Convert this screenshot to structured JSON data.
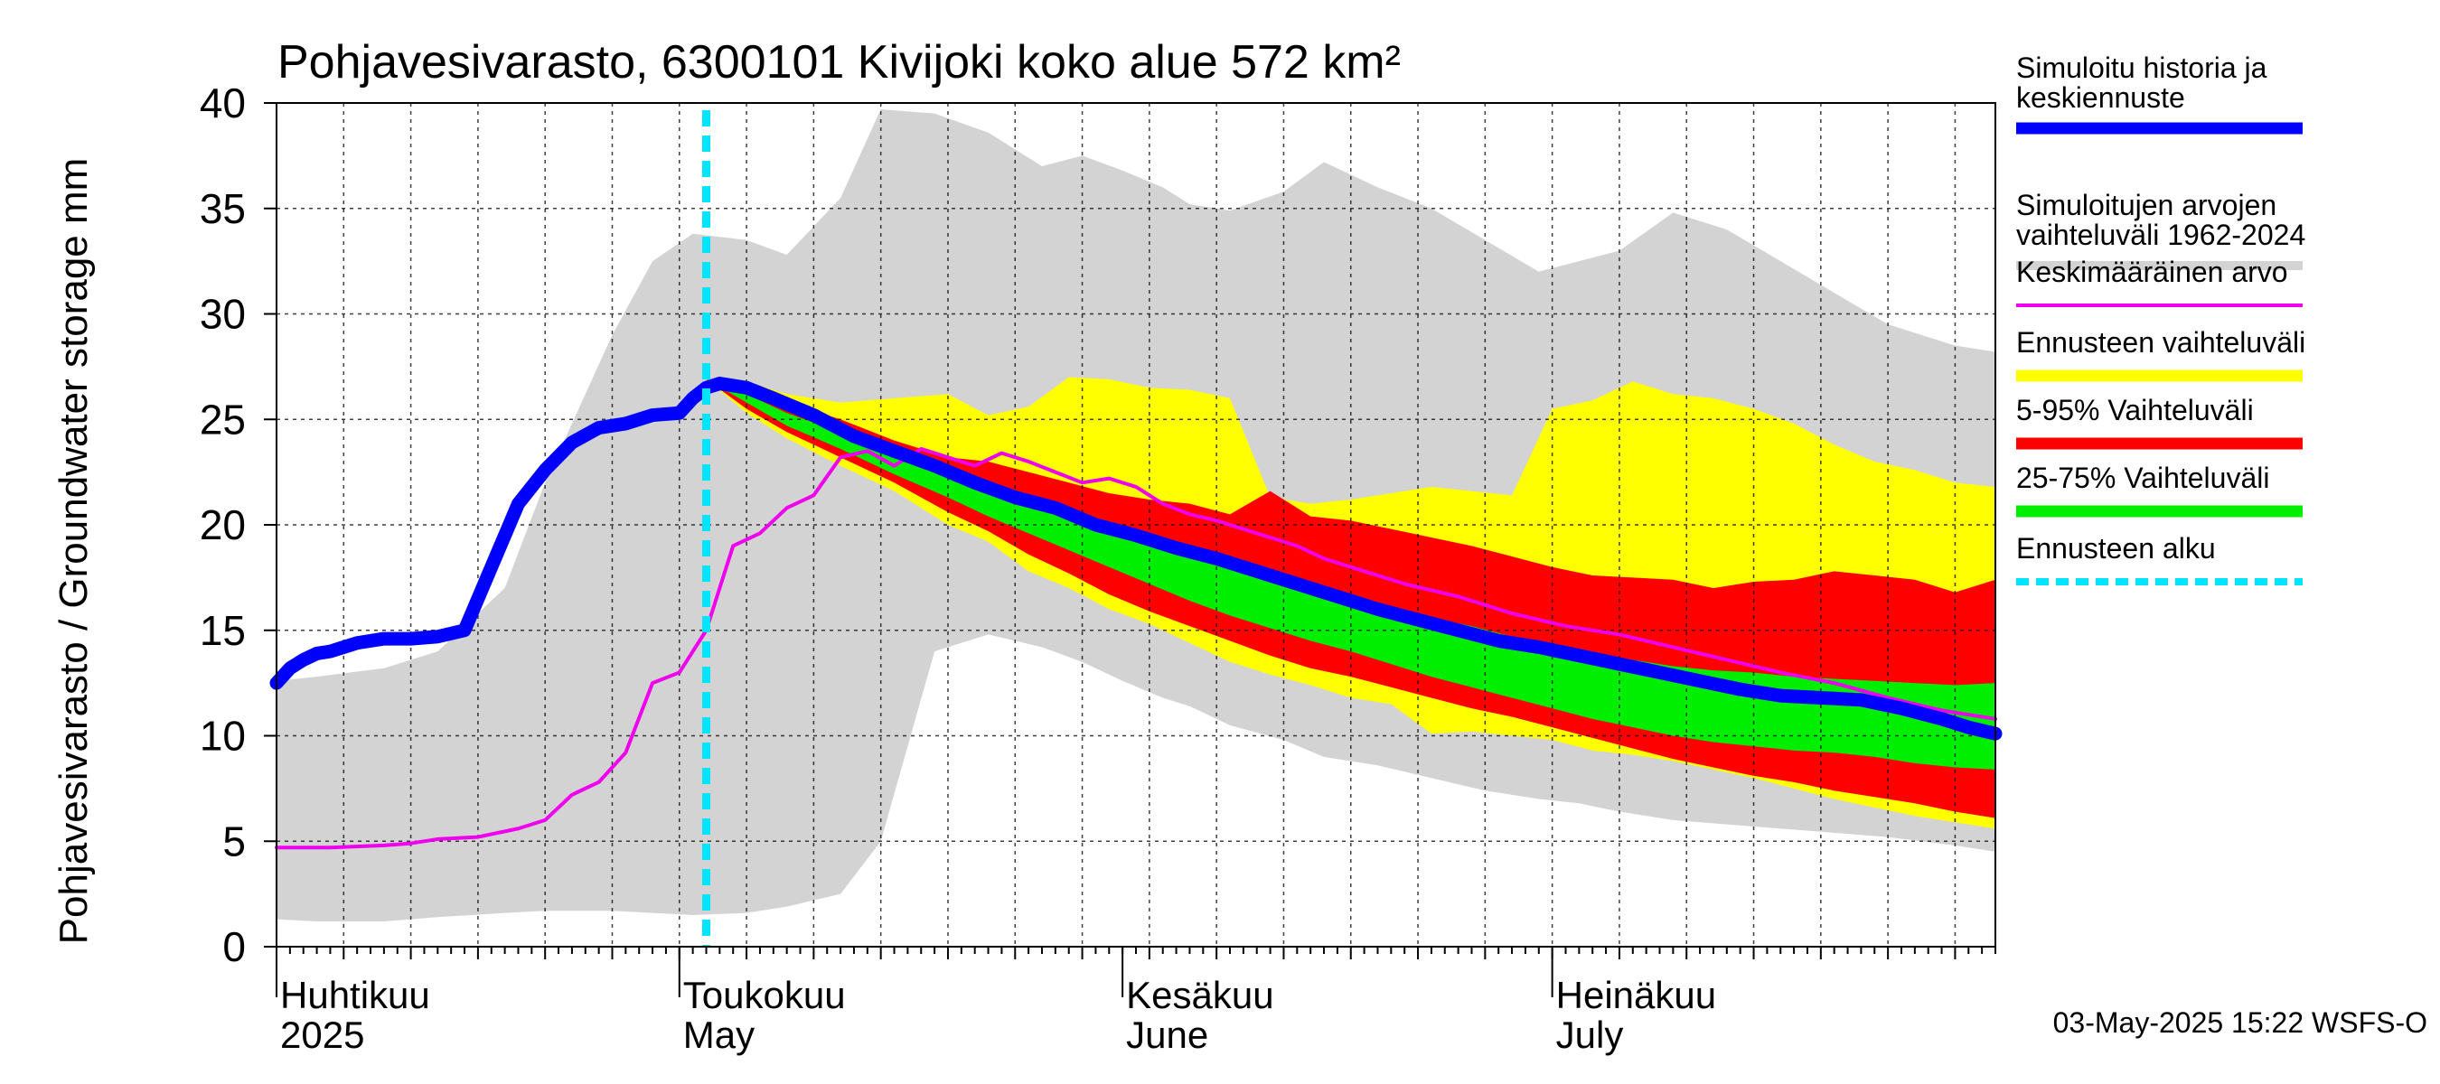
{
  "chart_data": {
    "type": "area",
    "title": "Pohjavesivarasto, 6300101 Kivijoki koko alue 572 km²",
    "ylabel": "Pohjavesivarasto / Groundwater storage   mm",
    "ylim": [
      0,
      40
    ],
    "yticks": [
      0,
      5,
      10,
      15,
      20,
      25,
      30,
      35,
      40
    ],
    "xlim": [
      0,
      128
    ],
    "months": [
      {
        "day": 0,
        "line1": "Huhtikuu",
        "line2": "2025"
      },
      {
        "day": 30,
        "line1": "Toukokuu",
        "line2": "May"
      },
      {
        "day": 63,
        "line1": "Kesäkuu",
        "line2": "June"
      },
      {
        "day": 95,
        "line1": "Heinäkuu",
        "line2": "July"
      }
    ],
    "forecast_start_day": 32,
    "colors": {
      "history": "#0000ff",
      "sim_range": "#d3d3d3",
      "mean": "#ee00ee",
      "forecast_range": "#ffff00",
      "p5_95": "#ff0000",
      "p25_75": "#00ee00",
      "forecast_start": "#00e5ff"
    },
    "series": [
      {
        "name": "sim_range",
        "type": "band",
        "x": [
          0,
          3,
          8,
          12,
          17,
          20,
          25,
          28,
          31,
          35,
          38,
          42,
          45,
          49,
          53,
          57,
          60,
          63,
          66,
          68,
          71,
          75,
          78,
          82,
          86,
          90,
          94,
          97,
          100,
          104,
          108,
          112,
          116,
          120,
          125,
          128
        ],
        "upper": [
          12.6,
          12.8,
          13.2,
          14.0,
          17.0,
          22.0,
          29.0,
          32.5,
          33.8,
          33.5,
          32.8,
          35.5,
          39.7,
          39.5,
          38.6,
          37.0,
          37.5,
          36.8,
          36.0,
          35.2,
          34.9,
          35.8,
          37.2,
          36.0,
          35.0,
          33.5,
          32.0,
          32.5,
          33.0,
          34.8,
          34.0,
          32.5,
          31.0,
          29.5,
          28.5,
          28.2
        ],
        "lower": [
          1.3,
          1.2,
          1.2,
          1.4,
          1.6,
          1.7,
          1.7,
          1.6,
          1.5,
          1.6,
          1.9,
          2.5,
          5.0,
          14.0,
          14.8,
          14.2,
          13.5,
          12.6,
          11.8,
          11.4,
          10.5,
          9.8,
          9.0,
          8.6,
          8.0,
          7.4,
          7.0,
          6.8,
          6.4,
          6.0,
          5.8,
          5.6,
          5.4,
          5.2,
          4.8,
          4.5
        ]
      },
      {
        "name": "forecast_range",
        "type": "band",
        "x": [
          32,
          35,
          38,
          42,
          46,
          50,
          53,
          56,
          59,
          62,
          65,
          68,
          71,
          74,
          77,
          80,
          83,
          86,
          89,
          92,
          95,
          98,
          101,
          104,
          107,
          110,
          113,
          116,
          119,
          122,
          125,
          128
        ],
        "upper": [
          26.9,
          26.8,
          26.2,
          25.8,
          26.0,
          26.2,
          25.2,
          25.6,
          27.0,
          26.9,
          26.5,
          26.4,
          26.0,
          21.3,
          21.0,
          21.2,
          21.5,
          21.8,
          21.6,
          21.4,
          25.5,
          25.9,
          26.8,
          26.2,
          26.0,
          25.5,
          24.8,
          23.8,
          23.0,
          22.6,
          22.0,
          21.8
        ],
        "lower": [
          26.9,
          25.3,
          24.1,
          22.8,
          21.6,
          20.0,
          19.2,
          17.8,
          17.0,
          16.0,
          15.3,
          14.4,
          13.5,
          12.9,
          12.4,
          11.8,
          11.5,
          10.1,
          10.2,
          10.0,
          9.8,
          9.3,
          9.1,
          8.8,
          8.4,
          8.0,
          7.5,
          7.0,
          6.6,
          6.2,
          5.9,
          5.6
        ]
      },
      {
        "name": "p5_95",
        "type": "band",
        "x": [
          32,
          35,
          38,
          42,
          46,
          50,
          53,
          56,
          59,
          62,
          65,
          68,
          71,
          74,
          77,
          80,
          83,
          86,
          89,
          92,
          95,
          98,
          101,
          104,
          107,
          110,
          113,
          116,
          119,
          122,
          125,
          128
        ],
        "upper": [
          26.9,
          26.5,
          25.8,
          25.0,
          24.0,
          23.2,
          23.0,
          22.5,
          22.0,
          21.5,
          21.2,
          21.0,
          20.5,
          21.6,
          20.4,
          20.2,
          19.8,
          19.4,
          19.0,
          18.5,
          18.0,
          17.6,
          17.5,
          17.4,
          17.0,
          17.3,
          17.4,
          17.8,
          17.6,
          17.4,
          16.8,
          17.4
        ],
        "lower": [
          26.9,
          25.5,
          24.4,
          23.2,
          22.0,
          20.6,
          19.7,
          18.6,
          17.7,
          16.7,
          15.9,
          15.2,
          14.5,
          13.8,
          13.2,
          12.8,
          12.3,
          11.8,
          11.3,
          10.9,
          10.4,
          9.9,
          9.4,
          8.9,
          8.5,
          8.1,
          7.8,
          7.4,
          7.1,
          6.8,
          6.4,
          6.1
        ]
      },
      {
        "name": "p25_75",
        "type": "band",
        "x": [
          32,
          35,
          38,
          42,
          46,
          50,
          53,
          56,
          59,
          62,
          65,
          68,
          71,
          74,
          77,
          80,
          83,
          86,
          89,
          92,
          95,
          98,
          101,
          104,
          107,
          110,
          113,
          116,
          119,
          122,
          125,
          128
        ],
        "upper": [
          26.9,
          26.2,
          25.3,
          24.4,
          23.4,
          22.5,
          21.8,
          21.2,
          20.6,
          20.0,
          19.4,
          18.8,
          18.2,
          17.6,
          17.0,
          16.6,
          16.1,
          15.6,
          15.2,
          14.7,
          14.3,
          13.9,
          13.6,
          13.3,
          13.1,
          13.0,
          12.8,
          12.7,
          12.6,
          12.5,
          12.4,
          12.5
        ],
        "lower": [
          26.9,
          25.8,
          24.7,
          23.6,
          22.4,
          21.3,
          20.4,
          19.6,
          18.8,
          18.0,
          17.2,
          16.4,
          15.7,
          15.1,
          14.5,
          14.0,
          13.4,
          12.8,
          12.3,
          11.8,
          11.3,
          10.8,
          10.4,
          10.0,
          9.7,
          9.5,
          9.3,
          9.2,
          9.0,
          8.7,
          8.5,
          8.4
        ]
      },
      {
        "name": "mean",
        "type": "line",
        "x": [
          0,
          4,
          8,
          10,
          12,
          15,
          18,
          20,
          22,
          24,
          26,
          28,
          30,
          32,
          34,
          36,
          38,
          40,
          42,
          44,
          46,
          48,
          50,
          52,
          54,
          56,
          58,
          60,
          62,
          64,
          66,
          68,
          70,
          72,
          74,
          76,
          78,
          80,
          84,
          88,
          92,
          96,
          100,
          104,
          108,
          112,
          116,
          120,
          124,
          128
        ],
        "y": [
          4.7,
          4.7,
          4.8,
          4.9,
          5.1,
          5.2,
          5.6,
          6.0,
          7.2,
          7.8,
          9.2,
          12.5,
          13.0,
          15.0,
          19.0,
          19.6,
          20.8,
          21.4,
          23.2,
          23.5,
          22.8,
          23.6,
          23.2,
          22.8,
          23.4,
          23.0,
          22.5,
          22.0,
          22.2,
          21.8,
          21.0,
          20.5,
          20.2,
          19.8,
          19.4,
          19.0,
          18.4,
          18.0,
          17.2,
          16.6,
          15.8,
          15.2,
          14.8,
          14.2,
          13.6,
          13.0,
          12.5,
          11.8,
          11.2,
          10.8
        ]
      },
      {
        "name": "history",
        "type": "line",
        "x": [
          0,
          1,
          2,
          3,
          4,
          6,
          8,
          10,
          12,
          14,
          16,
          18,
          20,
          22,
          24,
          26,
          28,
          30,
          31,
          32,
          33,
          35,
          37,
          40,
          43,
          46,
          49,
          52,
          55,
          58,
          61,
          64,
          67,
          70,
          73,
          76,
          79,
          82,
          85,
          88,
          91,
          94,
          97,
          100,
          103,
          106,
          109,
          112,
          115,
          118,
          121,
          124,
          126,
          128
        ],
        "y": [
          12.5,
          13.2,
          13.6,
          13.9,
          14.0,
          14.4,
          14.6,
          14.6,
          14.7,
          15.0,
          18.0,
          21.0,
          22.6,
          23.9,
          24.6,
          24.8,
          25.2,
          25.3,
          26.0,
          26.5,
          26.7,
          26.5,
          26.0,
          25.2,
          24.2,
          23.5,
          22.8,
          22.0,
          21.3,
          20.8,
          20.0,
          19.5,
          18.9,
          18.4,
          17.8,
          17.2,
          16.6,
          16.0,
          15.5,
          15.0,
          14.5,
          14.2,
          13.8,
          13.4,
          13.0,
          12.6,
          12.2,
          11.9,
          11.8,
          11.7,
          11.3,
          10.8,
          10.4,
          10.1
        ]
      }
    ]
  },
  "legend": [
    {
      "key": "history",
      "line1": "Simuloitu historia ja",
      "line2": "keskiennuste"
    },
    {
      "key": "sim_range",
      "line1": "Simuloitujen arvojen",
      "line2": "vaihteluväli 1962-2024"
    },
    {
      "key": "mean",
      "line1": "Keskimääräinen arvo",
      "line2": ""
    },
    {
      "key": "forecast_range",
      "line1": "Ennusteen vaihteluväli",
      "line2": ""
    },
    {
      "key": "p5_95",
      "line1": "5-95% Vaihteluväli",
      "line2": ""
    },
    {
      "key": "p25_75",
      "line1": "25-75% Vaihteluväli",
      "line2": ""
    },
    {
      "key": "forecast_start",
      "line1": "Ennusteen alku",
      "line2": ""
    }
  ],
  "footer": "03-May-2025 15:22 WSFS-O"
}
